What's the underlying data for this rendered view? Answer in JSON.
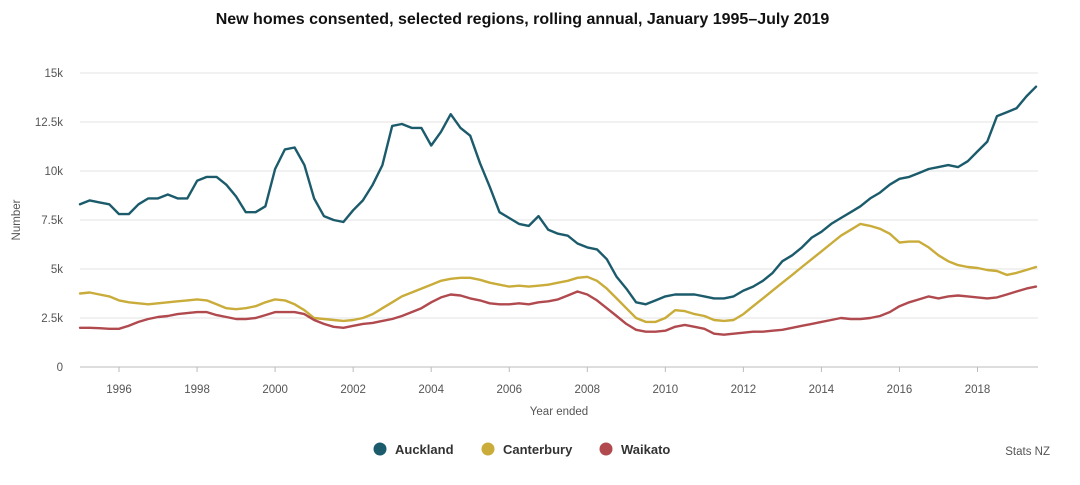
{
  "chart_data": {
    "type": "line",
    "title": "New homes consented, selected regions, rolling annual, January 1995–July 2019",
    "xlabel": "Year ended",
    "ylabel": "Number",
    "xlim": [
      1995.0,
      2019.55
    ],
    "ylim": [
      0,
      15000
    ],
    "x_ticks": [
      1996,
      1998,
      2000,
      2002,
      2004,
      2006,
      2008,
      2010,
      2012,
      2014,
      2016,
      2018
    ],
    "y_ticks": [
      0,
      2500,
      5000,
      7500,
      10000,
      12500,
      15000
    ],
    "y_tick_labels": [
      "0",
      "2.5k",
      "5k",
      "7.5k",
      "10k",
      "12.5k",
      "15k"
    ],
    "grid": true,
    "legend_position": "bottom-center",
    "source": "Stats NZ",
    "series": [
      {
        "name": "Auckland",
        "color": "#1b5b6b",
        "points": [
          [
            1995.0,
            8300
          ],
          [
            1995.25,
            8500
          ],
          [
            1995.5,
            8400
          ],
          [
            1995.75,
            8300
          ],
          [
            1996.0,
            7800
          ],
          [
            1996.25,
            7800
          ],
          [
            1996.5,
            8300
          ],
          [
            1996.75,
            8600
          ],
          [
            1997.0,
            8600
          ],
          [
            1997.25,
            8800
          ],
          [
            1997.5,
            8600
          ],
          [
            1997.75,
            8600
          ],
          [
            1998.0,
            9500
          ],
          [
            1998.25,
            9700
          ],
          [
            1998.5,
            9700
          ],
          [
            1998.75,
            9300
          ],
          [
            1999.0,
            8700
          ],
          [
            1999.25,
            7900
          ],
          [
            1999.5,
            7900
          ],
          [
            1999.75,
            8200
          ],
          [
            2000.0,
            10100
          ],
          [
            2000.25,
            11100
          ],
          [
            2000.5,
            11200
          ],
          [
            2000.75,
            10300
          ],
          [
            2001.0,
            8600
          ],
          [
            2001.25,
            7700
          ],
          [
            2001.5,
            7500
          ],
          [
            2001.75,
            7400
          ],
          [
            2002.0,
            8000
          ],
          [
            2002.25,
            8500
          ],
          [
            2002.5,
            9300
          ],
          [
            2002.75,
            10300
          ],
          [
            2003.0,
            12300
          ],
          [
            2003.25,
            12400
          ],
          [
            2003.5,
            12200
          ],
          [
            2003.75,
            12200
          ],
          [
            2004.0,
            11300
          ],
          [
            2004.25,
            12000
          ],
          [
            2004.5,
            12900
          ],
          [
            2004.75,
            12200
          ],
          [
            2005.0,
            11800
          ],
          [
            2005.25,
            10400
          ],
          [
            2005.5,
            9200
          ],
          [
            2005.75,
            7900
          ],
          [
            2006.0,
            7600
          ],
          [
            2006.25,
            7300
          ],
          [
            2006.5,
            7200
          ],
          [
            2006.75,
            7700
          ],
          [
            2007.0,
            7000
          ],
          [
            2007.25,
            6800
          ],
          [
            2007.5,
            6700
          ],
          [
            2007.75,
            6300
          ],
          [
            2008.0,
            6100
          ],
          [
            2008.25,
            6000
          ],
          [
            2008.5,
            5500
          ],
          [
            2008.75,
            4600
          ],
          [
            2009.0,
            4000
          ],
          [
            2009.25,
            3300
          ],
          [
            2009.5,
            3200
          ],
          [
            2009.75,
            3400
          ],
          [
            2010.0,
            3600
          ],
          [
            2010.25,
            3700
          ],
          [
            2010.5,
            3700
          ],
          [
            2010.75,
            3700
          ],
          [
            2011.0,
            3600
          ],
          [
            2011.25,
            3500
          ],
          [
            2011.5,
            3500
          ],
          [
            2011.75,
            3600
          ],
          [
            2012.0,
            3900
          ],
          [
            2012.25,
            4100
          ],
          [
            2012.5,
            4400
          ],
          [
            2012.75,
            4800
          ],
          [
            2013.0,
            5400
          ],
          [
            2013.25,
            5700
          ],
          [
            2013.5,
            6100
          ],
          [
            2013.75,
            6600
          ],
          [
            2014.0,
            6900
          ],
          [
            2014.25,
            7300
          ],
          [
            2014.5,
            7600
          ],
          [
            2014.75,
            7900
          ],
          [
            2015.0,
            8200
          ],
          [
            2015.25,
            8600
          ],
          [
            2015.5,
            8900
          ],
          [
            2015.75,
            9300
          ],
          [
            2016.0,
            9600
          ],
          [
            2016.25,
            9700
          ],
          [
            2016.5,
            9900
          ],
          [
            2016.75,
            10100
          ],
          [
            2017.0,
            10200
          ],
          [
            2017.25,
            10300
          ],
          [
            2017.5,
            10200
          ],
          [
            2017.75,
            10500
          ],
          [
            2018.0,
            11000
          ],
          [
            2018.25,
            11500
          ],
          [
            2018.5,
            12800
          ],
          [
            2018.75,
            13000
          ],
          [
            2019.0,
            13200
          ],
          [
            2019.25,
            13800
          ],
          [
            2019.5,
            14300
          ]
        ]
      },
      {
        "name": "Canterbury",
        "color": "#c9ac3a",
        "points": [
          [
            1995.0,
            3750
          ],
          [
            1995.25,
            3800
          ],
          [
            1995.5,
            3700
          ],
          [
            1995.75,
            3600
          ],
          [
            1996.0,
            3400
          ],
          [
            1996.25,
            3300
          ],
          [
            1996.5,
            3250
          ],
          [
            1996.75,
            3200
          ],
          [
            1997.0,
            3250
          ],
          [
            1997.25,
            3300
          ],
          [
            1997.5,
            3350
          ],
          [
            1997.75,
            3400
          ],
          [
            1998.0,
            3450
          ],
          [
            1998.25,
            3400
          ],
          [
            1998.5,
            3200
          ],
          [
            1998.75,
            3000
          ],
          [
            1999.0,
            2950
          ],
          [
            1999.25,
            3000
          ],
          [
            1999.5,
            3100
          ],
          [
            1999.75,
            3300
          ],
          [
            2000.0,
            3450
          ],
          [
            2000.25,
            3400
          ],
          [
            2000.5,
            3200
          ],
          [
            2000.75,
            2900
          ],
          [
            2001.0,
            2500
          ],
          [
            2001.25,
            2450
          ],
          [
            2001.5,
            2400
          ],
          [
            2001.75,
            2350
          ],
          [
            2002.0,
            2400
          ],
          [
            2002.25,
            2500
          ],
          [
            2002.5,
            2700
          ],
          [
            2002.75,
            3000
          ],
          [
            2003.0,
            3300
          ],
          [
            2003.25,
            3600
          ],
          [
            2003.5,
            3800
          ],
          [
            2003.75,
            4000
          ],
          [
            2004.0,
            4200
          ],
          [
            2004.25,
            4400
          ],
          [
            2004.5,
            4500
          ],
          [
            2004.75,
            4550
          ],
          [
            2005.0,
            4550
          ],
          [
            2005.25,
            4450
          ],
          [
            2005.5,
            4300
          ],
          [
            2005.75,
            4200
          ],
          [
            2006.0,
            4100
          ],
          [
            2006.25,
            4150
          ],
          [
            2006.5,
            4100
          ],
          [
            2006.75,
            4150
          ],
          [
            2007.0,
            4200
          ],
          [
            2007.25,
            4300
          ],
          [
            2007.5,
            4400
          ],
          [
            2007.75,
            4550
          ],
          [
            2008.0,
            4600
          ],
          [
            2008.25,
            4400
          ],
          [
            2008.5,
            4000
          ],
          [
            2008.75,
            3500
          ],
          [
            2009.0,
            3000
          ],
          [
            2009.25,
            2500
          ],
          [
            2009.5,
            2300
          ],
          [
            2009.75,
            2300
          ],
          [
            2010.0,
            2500
          ],
          [
            2010.25,
            2900
          ],
          [
            2010.5,
            2850
          ],
          [
            2010.75,
            2700
          ],
          [
            2011.0,
            2600
          ],
          [
            2011.25,
            2400
          ],
          [
            2011.5,
            2350
          ],
          [
            2011.75,
            2400
          ],
          [
            2012.0,
            2700
          ],
          [
            2012.25,
            3100
          ],
          [
            2012.5,
            3500
          ],
          [
            2012.75,
            3900
          ],
          [
            2013.0,
            4300
          ],
          [
            2013.25,
            4700
          ],
          [
            2013.5,
            5100
          ],
          [
            2013.75,
            5500
          ],
          [
            2014.0,
            5900
          ],
          [
            2014.25,
            6300
          ],
          [
            2014.5,
            6700
          ],
          [
            2014.75,
            7000
          ],
          [
            2015.0,
            7300
          ],
          [
            2015.25,
            7200
          ],
          [
            2015.5,
            7050
          ],
          [
            2015.75,
            6800
          ],
          [
            2016.0,
            6350
          ],
          [
            2016.25,
            6400
          ],
          [
            2016.5,
            6400
          ],
          [
            2016.75,
            6100
          ],
          [
            2017.0,
            5700
          ],
          [
            2017.25,
            5400
          ],
          [
            2017.5,
            5200
          ],
          [
            2017.75,
            5100
          ],
          [
            2018.0,
            5050
          ],
          [
            2018.25,
            4950
          ],
          [
            2018.5,
            4900
          ],
          [
            2018.75,
            4700
          ],
          [
            2019.0,
            4800
          ],
          [
            2019.25,
            4950
          ],
          [
            2019.5,
            5100
          ]
        ]
      },
      {
        "name": "Waikato",
        "color": "#b04a4f",
        "points": [
          [
            1995.0,
            2000
          ],
          [
            1995.25,
            2000
          ],
          [
            1995.5,
            1980
          ],
          [
            1995.75,
            1950
          ],
          [
            1996.0,
            1950
          ],
          [
            1996.25,
            2100
          ],
          [
            1996.5,
            2300
          ],
          [
            1996.75,
            2450
          ],
          [
            1997.0,
            2550
          ],
          [
            1997.25,
            2600
          ],
          [
            1997.5,
            2700
          ],
          [
            1997.75,
            2750
          ],
          [
            1998.0,
            2800
          ],
          [
            1998.25,
            2800
          ],
          [
            1998.5,
            2650
          ],
          [
            1998.75,
            2550
          ],
          [
            1999.0,
            2450
          ],
          [
            1999.25,
            2450
          ],
          [
            1999.5,
            2500
          ],
          [
            1999.75,
            2650
          ],
          [
            2000.0,
            2800
          ],
          [
            2000.25,
            2800
          ],
          [
            2000.5,
            2800
          ],
          [
            2000.75,
            2700
          ],
          [
            2001.0,
            2400
          ],
          [
            2001.25,
            2200
          ],
          [
            2001.5,
            2050
          ],
          [
            2001.75,
            2000
          ],
          [
            2002.0,
            2100
          ],
          [
            2002.25,
            2200
          ],
          [
            2002.5,
            2250
          ],
          [
            2002.75,
            2350
          ],
          [
            2003.0,
            2450
          ],
          [
            2003.25,
            2600
          ],
          [
            2003.5,
            2800
          ],
          [
            2003.75,
            3000
          ],
          [
            2004.0,
            3300
          ],
          [
            2004.25,
            3550
          ],
          [
            2004.5,
            3700
          ],
          [
            2004.75,
            3650
          ],
          [
            2005.0,
            3500
          ],
          [
            2005.25,
            3400
          ],
          [
            2005.5,
            3250
          ],
          [
            2005.75,
            3200
          ],
          [
            2006.0,
            3200
          ],
          [
            2006.25,
            3250
          ],
          [
            2006.5,
            3200
          ],
          [
            2006.75,
            3300
          ],
          [
            2007.0,
            3350
          ],
          [
            2007.25,
            3450
          ],
          [
            2007.5,
            3650
          ],
          [
            2007.75,
            3850
          ],
          [
            2008.0,
            3700
          ],
          [
            2008.25,
            3400
          ],
          [
            2008.5,
            3000
          ],
          [
            2008.75,
            2600
          ],
          [
            2009.0,
            2200
          ],
          [
            2009.25,
            1900
          ],
          [
            2009.5,
            1800
          ],
          [
            2009.75,
            1800
          ],
          [
            2010.0,
            1850
          ],
          [
            2010.25,
            2050
          ],
          [
            2010.5,
            2150
          ],
          [
            2010.75,
            2050
          ],
          [
            2011.0,
            1950
          ],
          [
            2011.25,
            1700
          ],
          [
            2011.5,
            1650
          ],
          [
            2011.75,
            1700
          ],
          [
            2012.0,
            1750
          ],
          [
            2012.25,
            1800
          ],
          [
            2012.5,
            1800
          ],
          [
            2012.75,
            1850
          ],
          [
            2013.0,
            1900
          ],
          [
            2013.25,
            2000
          ],
          [
            2013.5,
            2100
          ],
          [
            2013.75,
            2200
          ],
          [
            2014.0,
            2300
          ],
          [
            2014.25,
            2400
          ],
          [
            2014.5,
            2500
          ],
          [
            2014.75,
            2450
          ],
          [
            2015.0,
            2450
          ],
          [
            2015.25,
            2500
          ],
          [
            2015.5,
            2600
          ],
          [
            2015.75,
            2800
          ],
          [
            2016.0,
            3100
          ],
          [
            2016.25,
            3300
          ],
          [
            2016.5,
            3450
          ],
          [
            2016.75,
            3600
          ],
          [
            2017.0,
            3500
          ],
          [
            2017.25,
            3600
          ],
          [
            2017.5,
            3650
          ],
          [
            2017.75,
            3600
          ],
          [
            2018.0,
            3550
          ],
          [
            2018.25,
            3500
          ],
          [
            2018.5,
            3550
          ],
          [
            2018.75,
            3700
          ],
          [
            2019.0,
            3850
          ],
          [
            2019.25,
            4000
          ],
          [
            2019.5,
            4100
          ]
        ]
      }
    ]
  }
}
